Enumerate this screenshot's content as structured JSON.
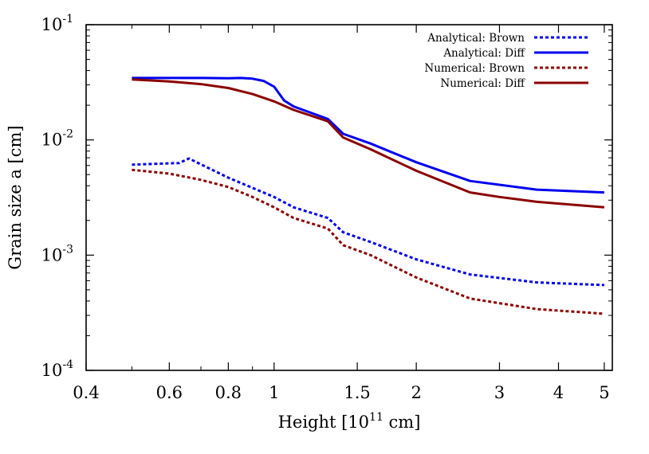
{
  "chart_data": {
    "type": "line",
    "xlabel": {
      "pre": "Height [10",
      "sup": "11",
      "post": " cm]"
    },
    "ylabel": "Grain size a [cm]",
    "xscale": "log",
    "yscale": "log",
    "xlim": [
      0.4,
      5.2
    ],
    "ylim": [
      0.0001,
      0.1
    ],
    "grid": false,
    "legend_position": "top-right",
    "x_ticks": [
      {
        "value": 0.4,
        "label": "0.4"
      },
      {
        "value": 0.6,
        "label": "0.6"
      },
      {
        "value": 0.8,
        "label": "0.8"
      },
      {
        "value": 1,
        "label": "1"
      },
      {
        "value": 1.5,
        "label": "1.5"
      },
      {
        "value": 2,
        "label": "2"
      },
      {
        "value": 3,
        "label": "3"
      },
      {
        "value": 4,
        "label": "4"
      },
      {
        "value": 5,
        "label": "5"
      }
    ],
    "y_ticks": [
      {
        "value": 0.0001,
        "base": "10",
        "exp": "-4"
      },
      {
        "value": 0.001,
        "base": "10",
        "exp": "-3"
      },
      {
        "value": 0.01,
        "base": "10",
        "exp": "-2"
      },
      {
        "value": 0.1,
        "base": "10",
        "exp": "-1"
      }
    ],
    "series": [
      {
        "name": "Analytical: Brown",
        "color": "#0000ee",
        "dash": true,
        "x": [
          0.5,
          0.63,
          0.645,
          0.66,
          0.8,
          1.0,
          1.1,
          1.3,
          1.4,
          1.6,
          2.0,
          2.6,
          3.6,
          5.0
        ],
        "y": [
          0.0061,
          0.0063,
          0.0066,
          0.0069,
          0.0047,
          0.0032,
          0.0026,
          0.0021,
          0.00158,
          0.0013,
          0.00092,
          0.00068,
          0.00058,
          0.00055
        ]
      },
      {
        "name": "Analytical: Diff",
        "color": "#0000ee",
        "dash": false,
        "x": [
          0.5,
          0.7,
          0.8,
          0.85,
          0.9,
          0.95,
          1.0,
          1.05,
          1.1,
          1.3,
          1.4,
          1.6,
          2.0,
          2.6,
          3.6,
          5.0
        ],
        "y": [
          0.0345,
          0.0345,
          0.0343,
          0.0345,
          0.034,
          0.0325,
          0.029,
          0.022,
          0.0195,
          0.0152,
          0.0113,
          0.0093,
          0.0064,
          0.0044,
          0.0037,
          0.0035
        ]
      },
      {
        "name": "Numerical: Brown",
        "color": "#8b0000",
        "dash": true,
        "x": [
          0.5,
          0.6,
          0.7,
          0.8,
          0.9,
          1.0,
          1.1,
          1.3,
          1.4,
          1.6,
          2.0,
          2.6,
          3.6,
          5.0
        ],
        "y": [
          0.0055,
          0.0051,
          0.0045,
          0.0039,
          0.0032,
          0.0026,
          0.0021,
          0.0017,
          0.00122,
          0.001,
          0.00064,
          0.00042,
          0.00034,
          0.00031
        ]
      },
      {
        "name": "Numerical: Diff",
        "color": "#8b0000",
        "dash": false,
        "x": [
          0.5,
          0.6,
          0.7,
          0.8,
          0.9,
          1.0,
          1.1,
          1.3,
          1.4,
          1.6,
          2.0,
          2.6,
          3.0,
          3.6,
          5.0
        ],
        "y": [
          0.0335,
          0.0322,
          0.0305,
          0.0282,
          0.025,
          0.0216,
          0.0182,
          0.0145,
          0.0105,
          0.0083,
          0.0054,
          0.0035,
          0.0032,
          0.0029,
          0.0026
        ]
      }
    ]
  }
}
